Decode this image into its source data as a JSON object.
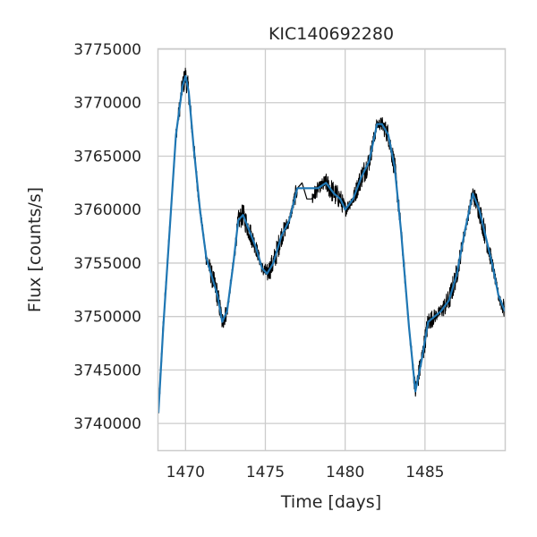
{
  "chart_data": {
    "type": "line",
    "title": "KIC140692280",
    "xlabel": "Time [days]",
    "ylabel": "Flux [counts/s]",
    "xlim": [
      1468.3,
      1490.0
    ],
    "ylim": [
      3737500,
      3775000
    ],
    "xticks": [
      1470,
      1475,
      1480,
      1485
    ],
    "yticks": [
      3740000,
      3745000,
      3750000,
      3755000,
      3760000,
      3765000,
      3770000,
      3775000
    ],
    "grid": true,
    "series": [
      {
        "color": "#000000",
        "style": "raw-noisy",
        "x": [
          1468.3,
          1468.6,
          1469.0,
          1469.4,
          1469.8,
          1470.0,
          1470.2,
          1470.5,
          1470.9,
          1471.3,
          1471.7,
          1472.0,
          1472.3,
          1472.6,
          1473.0,
          1473.3,
          1473.6,
          1474.0,
          1474.4,
          1474.8,
          1475.1,
          1475.5,
          1476.0,
          1476.5,
          1477.0,
          1477.3,
          1477.6,
          1477.9,
          1478.3,
          1478.8,
          1479.3,
          1479.7,
          1480.0,
          1480.5,
          1481.0,
          1481.5,
          1482.0,
          1482.3,
          1482.7,
          1483.1,
          1483.5,
          1484.0,
          1484.4,
          1484.8,
          1485.2,
          1485.6,
          1486.0,
          1486.5,
          1487.0,
          1487.5,
          1488.0,
          1488.4,
          1488.8,
          1489.2,
          1489.6,
          1490.0
        ],
        "values": [
          3741000,
          3749000,
          3758000,
          3767000,
          3771500,
          3772500,
          3771000,
          3766000,
          3760000,
          3755500,
          3753500,
          3752000,
          3749500,
          3750500,
          3755000,
          3759000,
          3759500,
          3758000,
          3756500,
          3754500,
          3754000,
          3755000,
          3757500,
          3759000,
          3762000,
          3762500,
          3761000,
          3761000,
          3762000,
          3762500,
          3761500,
          3761000,
          3760000,
          3761000,
          3763000,
          3764500,
          3768000,
          3768000,
          3767000,
          3764000,
          3758000,
          3749000,
          3743000,
          3746000,
          3749500,
          3750000,
          3750500,
          3751500,
          3754000,
          3758000,
          3761500,
          3760000,
          3757500,
          3755000,
          3752000,
          3750500
        ]
      },
      {
        "color": "#1f77b4",
        "style": "binned",
        "x": [
          1468.3,
          1468.6,
          1469.0,
          1469.4,
          1469.8,
          1470.0,
          1470.2,
          1470.5,
          1470.9,
          1471.3,
          1471.7,
          1472.0,
          1472.3,
          1472.6,
          1473.0,
          1473.3,
          1473.6,
          1474.0,
          1474.4,
          1474.8,
          1475.1,
          1475.5,
          1476.0,
          1476.5,
          1477.0,
          1477.3,
          1477.6,
          1477.9,
          1478.3,
          1478.8,
          1479.3,
          1479.7,
          1480.0,
          1480.5,
          1481.0,
          1481.5,
          1482.0,
          1482.3,
          1482.7,
          1483.1,
          1483.5,
          1484.0,
          1484.4,
          1484.8,
          1485.2,
          1485.6,
          1486.0,
          1486.5,
          1487.0,
          1487.5,
          1488.0,
          1488.4,
          1488.8,
          1489.2,
          1489.6,
          1490.0
        ],
        "values": [
          3741000,
          3749000,
          3758000,
          3767000,
          3771500,
          3772500,
          3771000,
          3766000,
          3760000,
          3755500,
          3753500,
          3752000,
          3749500,
          3750500,
          3755000,
          3759000,
          3759500,
          3758000,
          3756500,
          3754500,
          3754000,
          3755000,
          3757500,
          3759000,
          3762000,
          3762000,
          3762000,
          3762000,
          3762000,
          3762500,
          3761500,
          3761000,
          3760000,
          3761000,
          3763000,
          3764500,
          3768000,
          3768000,
          3767000,
          3764000,
          3758000,
          3749000,
          3743000,
          3746000,
          3749500,
          3750000,
          3750500,
          3751500,
          3754000,
          3758000,
          3761500,
          3760000,
          3757500,
          3755000,
          3752000,
          3750500
        ]
      }
    ]
  }
}
